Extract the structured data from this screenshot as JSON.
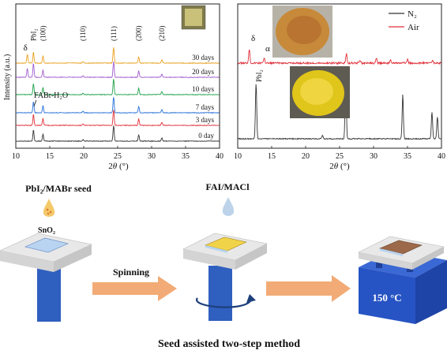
{
  "panel_a": {
    "title": "",
    "xlabel": "2θ (°)",
    "xlabel_theta": "θ",
    "xlabel_prefix": "2",
    "xlabel_suffix": " (°)",
    "ylabel": "Intensity (a.u.)",
    "x_ticks": [
      10,
      15,
      20,
      25,
      30,
      35,
      40
    ],
    "peak_labels": [
      {
        "text": "δ",
        "x": 11.7
      },
      {
        "text": "PbI₂",
        "x": 12.6
      },
      {
        "text": "(100)",
        "x": 14.0
      },
      {
        "text": "(110)",
        "x": 19.9
      },
      {
        "text": "(111)",
        "x": 24.4
      },
      {
        "text": "(200)",
        "x": 28.1
      },
      {
        "text": "(210)",
        "x": 31.5
      }
    ],
    "annotation": "FABr-H₂O",
    "series": [
      {
        "name": "30 days",
        "color": "#e8a020"
      },
      {
        "name": "20 days",
        "color": "#a05ccf"
      },
      {
        "name": "10 days",
        "color": "#1fa24a"
      },
      {
        "name": "7 days",
        "color": "#2670d8"
      },
      {
        "name": "3 days",
        "color": "#e0303a"
      },
      {
        "name": "0 day",
        "color": "#333333"
      }
    ]
  },
  "panel_b": {
    "xlabel": "2θ (°)",
    "xlabel_prefix": "2",
    "xlabel_theta": "θ",
    "xlabel_suffix": " (°)",
    "x_ticks": [
      10,
      15,
      20,
      25,
      30,
      35,
      40
    ],
    "legend": [
      {
        "name": "N₂",
        "color": "#333333"
      },
      {
        "name": "Air",
        "color": "#e0303a"
      }
    ],
    "labels": {
      "delta": "δ",
      "alpha": "α",
      "pbi2": "PbI₂"
    }
  },
  "schematic": {
    "seed_label": "PbI₂/MABr seed",
    "fai_label": "FAI/MACl",
    "sno2_label": "SnO₂",
    "spinning_label": "Spinning",
    "temperature_label": "150 °C",
    "caption": "Seed assisted two-step method"
  },
  "colors": {
    "orange_arrow": "#f2ab76",
    "spin_blue": "#2f5fbf",
    "hotplate_blue": "#2754c4",
    "sno2_film": "#b9d4f0",
    "fai_film": "#f1d34a",
    "perovskite_brown": "#9c6a4a"
  }
}
